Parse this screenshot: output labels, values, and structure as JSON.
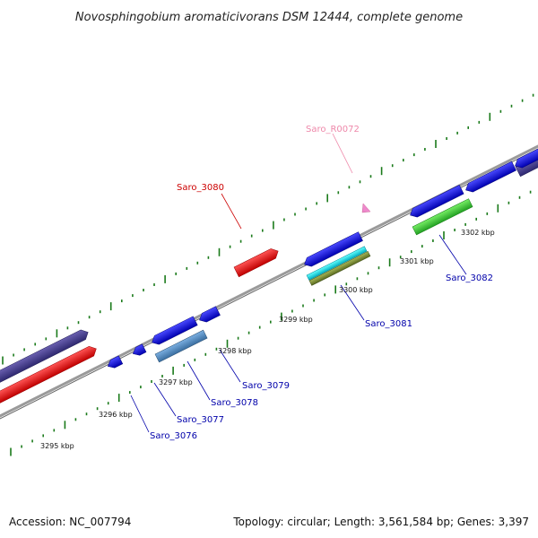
{
  "title": "Novosphingobium aromaticivorans DSM 12444, complete genome",
  "footer": {
    "accession": "Accession: NC_007794",
    "summary": "Topology: circular; Length: 3,561,584 bp; Genes: 3,397"
  },
  "colors": {
    "backbone": "#888888",
    "tick": "#1a7a1a",
    "forward_label": "#cc0000",
    "reverse_label": "#0000aa",
    "rna_label": "#ee88aa"
  },
  "scale_labels": [
    "3295 kbp",
    "3296 kbp",
    "3297 kbp",
    "3298 kbp",
    "3299 kbp",
    "3300 kbp",
    "3301 kbp",
    "3302 kbp"
  ],
  "gene_labels": [
    {
      "id": "saro_3080",
      "text": "Saro_3080",
      "color": "#cc0000"
    },
    {
      "id": "saro_r0072",
      "text": "Saro_R0072",
      "color": "#ee88aa"
    },
    {
      "id": "saro_3076",
      "text": "Saro_3076",
      "color": "#0000aa"
    },
    {
      "id": "saro_3077",
      "text": "Saro_3077",
      "color": "#0000aa"
    },
    {
      "id": "saro_3078",
      "text": "Saro_3078",
      "color": "#0000aa"
    },
    {
      "id": "saro_3079",
      "text": "Saro_3079",
      "color": "#0000aa"
    },
    {
      "id": "saro_3081",
      "text": "Saro_3081",
      "color": "#0000aa"
    },
    {
      "id": "saro_3082",
      "text": "Saro_3082",
      "color": "#0000aa"
    }
  ]
}
